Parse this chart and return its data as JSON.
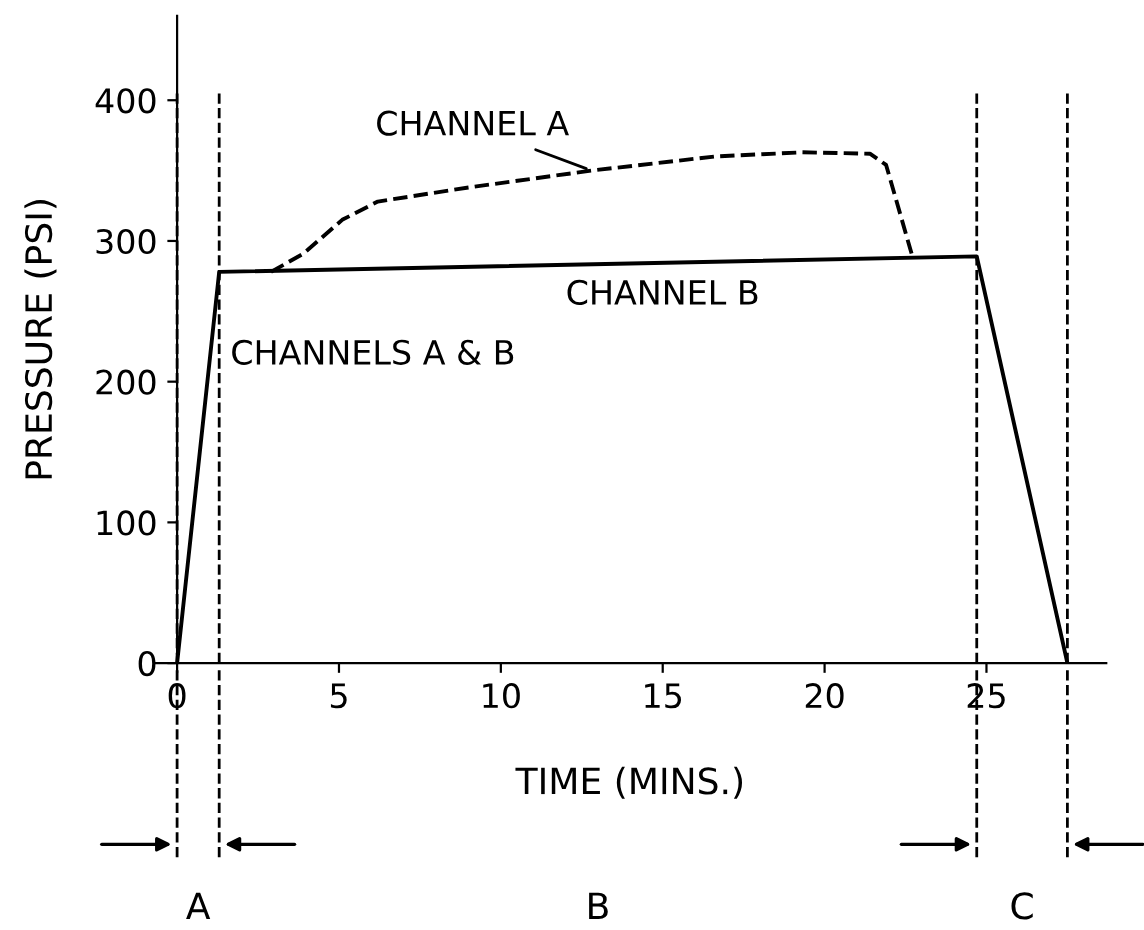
{
  "chart_data": {
    "type": "line",
    "xlabel": "TIME (MINS.)",
    "ylabel": "PRESSURE (PSI)",
    "xlim": [
      -0.7,
      28.7
    ],
    "ylim": [
      0,
      460
    ],
    "xticks": [
      0,
      5,
      10,
      15,
      20,
      25
    ],
    "yticks": [
      0,
      100,
      200,
      300,
      400
    ],
    "grid": false,
    "series": [
      {
        "color": "#000000",
        "line_style": "solid",
        "x": [
          0,
          1.3,
          24.7,
          27.5
        ],
        "values": [
          0,
          278,
          289,
          0
        ]
      },
      {
        "color": "#000000",
        "line_style": "dashed",
        "x": [
          2.9,
          3.9,
          5.1,
          6.2,
          9,
          12.8,
          16.6,
          19.3,
          21.4,
          21.9,
          22.7
        ],
        "values": [
          278,
          291,
          315,
          328,
          338,
          350,
          360,
          363,
          362,
          354,
          290
        ]
      }
    ],
    "ref_lines": [
      {
        "axis": "x",
        "value": 0
      },
      {
        "axis": "x",
        "value": 1.3
      },
      {
        "axis": "x",
        "value": 24.7
      },
      {
        "axis": "x",
        "value": 27.5
      }
    ],
    "annotations": [
      {
        "text": "CHANNEL A",
        "x": 12.8,
        "y": 350
      },
      {
        "text": "CHANNEL B",
        "x": 15,
        "y": 289
      },
      {
        "text": "CHANNELS A & B",
        "x": 1.3,
        "y": 278
      },
      "A",
      "B",
      "C"
    ]
  }
}
